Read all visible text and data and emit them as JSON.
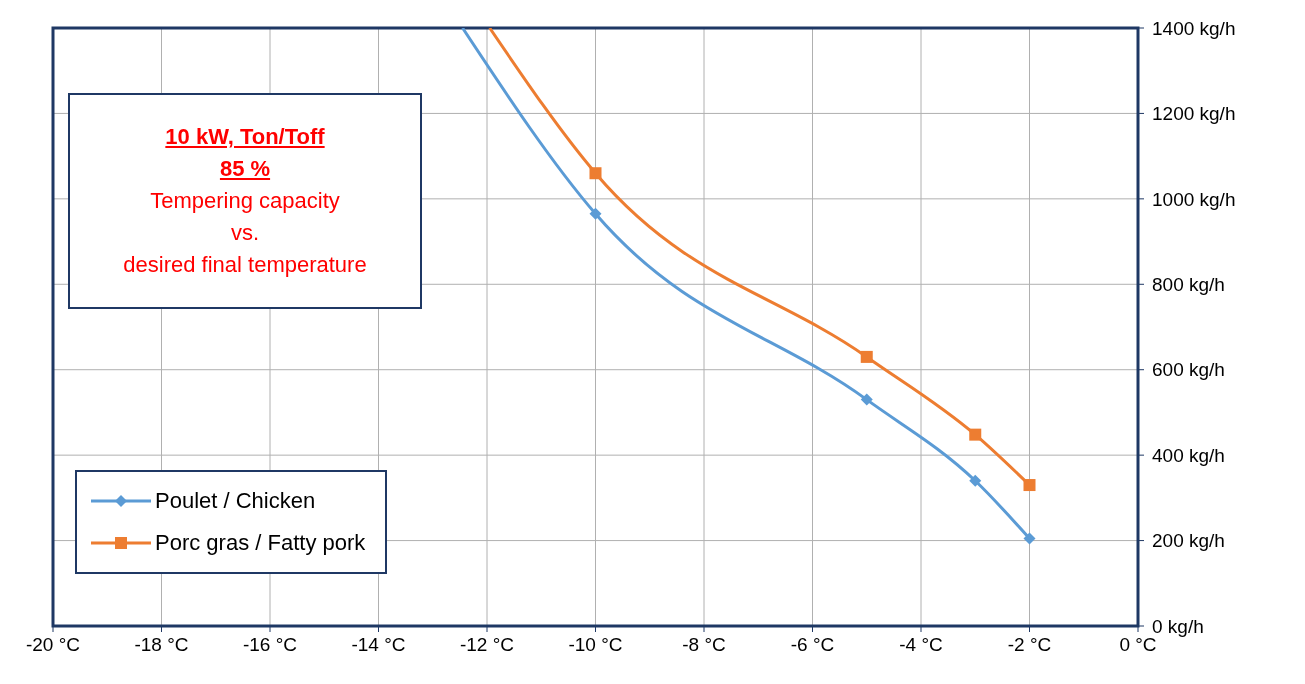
{
  "chart_data": {
    "type": "line",
    "title": "10 kW,  Ton/Toff",
    "subtitle": "85 %",
    "annotations": [
      "Tempering capacity",
      "vs.",
      "desired final temperature"
    ],
    "series": [
      {
        "name": "Poulet / Chicken",
        "color": "#5b9bd5",
        "marker": "diamond",
        "x": [
          -12.45,
          -10,
          -5,
          -3,
          -2
        ],
        "values": [
          1400,
          965,
          530,
          340,
          205
        ]
      },
      {
        "name": "Porc gras / Fatty pork",
        "color": "#ed7d31",
        "marker": "square",
        "x": [
          -11.95,
          -10,
          -5,
          -3,
          -2
        ],
        "values": [
          1400,
          1060,
          630,
          448,
          330
        ]
      }
    ],
    "xlim": [
      -20,
      0
    ],
    "xticks": [
      {
        "value": -20,
        "label": "-20 °C"
      },
      {
        "value": -18,
        "label": "-18 °C"
      },
      {
        "value": -16,
        "label": "-16 °C"
      },
      {
        "value": -14,
        "label": "-14 °C"
      },
      {
        "value": -12,
        "label": "-12 °C"
      },
      {
        "value": -10,
        "label": "-10 °C"
      },
      {
        "value": -8,
        "label": "-8 °C"
      },
      {
        "value": -6,
        "label": "-6 °C"
      },
      {
        "value": -4,
        "label": "-4 °C"
      },
      {
        "value": -2,
        "label": "-2 °C"
      },
      {
        "value": 0,
        "label": "0 °C"
      }
    ],
    "ylim": [
      0,
      1400
    ],
    "yticks": [
      {
        "value": 0,
        "label": "0 kg/h"
      },
      {
        "value": 200,
        "label": "200 kg/h"
      },
      {
        "value": 400,
        "label": "400 kg/h"
      },
      {
        "value": 600,
        "label": "600 kg/h"
      },
      {
        "value": 800,
        "label": "800 kg/h"
      },
      {
        "value": 1000,
        "label": "1000 kg/h"
      },
      {
        "value": 1200,
        "label": "1200 kg/h"
      },
      {
        "value": 1400,
        "label": "1400 kg/h"
      }
    ],
    "grid": true,
    "legend": "bottom left",
    "line_style": "solid"
  }
}
